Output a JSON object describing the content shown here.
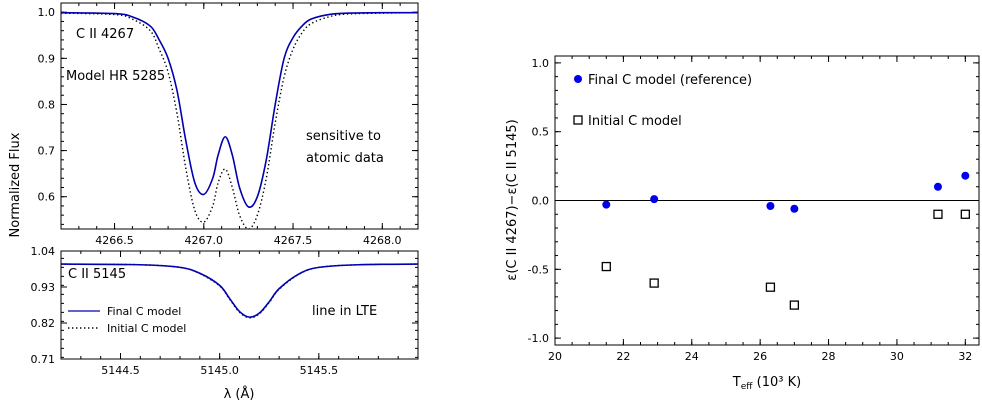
{
  "chart_data": [
    {
      "type": "line",
      "panel": "top-left",
      "ylabel": "Normalized Flux",
      "xlim": [
        4266.2,
        4268.2
      ],
      "ylim": [
        0.53,
        1.02
      ],
      "x_ticks": [
        "4266.5",
        "4267.0",
        "4267.5",
        "4268.0"
      ],
      "y_ticks": [
        "1.0",
        "0.9",
        "0.8",
        "0.7",
        "0.6"
      ],
      "annotations": [
        "C II 4267",
        "Model HR 5285",
        "sensitive to",
        "atomic data"
      ],
      "series": [
        {
          "name": "Final C model",
          "color": "#0000b0",
          "style": "solid",
          "x": [
            4266.2,
            4266.5,
            4266.6,
            4266.7,
            4266.75,
            4266.8,
            4266.85,
            4266.9,
            4266.95,
            4267.0,
            4267.05,
            4267.08,
            4267.12,
            4267.16,
            4267.2,
            4267.25,
            4267.3,
            4267.35,
            4267.4,
            4267.45,
            4267.5,
            4267.55,
            4267.6,
            4267.7,
            4267.8,
            4268.0,
            4268.2
          ],
          "y": [
            0.999,
            0.997,
            0.99,
            0.97,
            0.94,
            0.9,
            0.83,
            0.72,
            0.63,
            0.605,
            0.64,
            0.69,
            0.73,
            0.69,
            0.62,
            0.578,
            0.6,
            0.68,
            0.8,
            0.9,
            0.945,
            0.97,
            0.985,
            0.995,
            0.998,
            0.999,
            0.999
          ]
        },
        {
          "name": "Initial C model",
          "color": "#000000",
          "style": "dotted",
          "x": [
            4266.2,
            4266.5,
            4266.6,
            4266.7,
            4266.75,
            4266.8,
            4266.85,
            4266.9,
            4266.95,
            4267.0,
            4267.05,
            4267.08,
            4267.12,
            4267.16,
            4267.2,
            4267.25,
            4267.3,
            4267.35,
            4267.4,
            4267.45,
            4267.5,
            4267.55,
            4267.6,
            4267.7,
            4267.8,
            4268.0,
            4268.2
          ],
          "y": [
            0.998,
            0.995,
            0.985,
            0.96,
            0.92,
            0.87,
            0.78,
            0.66,
            0.57,
            0.545,
            0.58,
            0.63,
            0.66,
            0.62,
            0.56,
            0.53,
            0.56,
            0.64,
            0.76,
            0.86,
            0.92,
            0.955,
            0.975,
            0.99,
            0.996,
            0.998,
            0.999
          ]
        }
      ]
    },
    {
      "type": "line",
      "panel": "bottom-left",
      "xlabel": "λ (Å)",
      "xlim": [
        5144.2,
        5146.0
      ],
      "ylim": [
        0.71,
        1.04
      ],
      "x_ticks": [
        "5144.5",
        "5145.0",
        "5145.5"
      ],
      "y_ticks": [
        "1.04",
        "0.93",
        "0.82",
        "0.71"
      ],
      "annotations": [
        "C II 5145",
        "line in LTE"
      ],
      "legend": [
        "Final C model",
        "Initial C model"
      ],
      "series": [
        {
          "name": "Final C model",
          "color": "#0000b0",
          "style": "solid",
          "x": [
            5144.2,
            5144.6,
            5144.8,
            5144.9,
            5145.0,
            5145.05,
            5145.1,
            5145.15,
            5145.2,
            5145.25,
            5145.3,
            5145.4,
            5145.5,
            5145.7,
            5146.0
          ],
          "y": [
            1.0,
            0.998,
            0.99,
            0.972,
            0.935,
            0.895,
            0.855,
            0.838,
            0.85,
            0.885,
            0.925,
            0.97,
            0.99,
            0.998,
            1.0
          ]
        },
        {
          "name": "Initial C model",
          "color": "#000000",
          "style": "dotted",
          "x": [
            5144.2,
            5144.6,
            5144.8,
            5144.9,
            5145.0,
            5145.05,
            5145.1,
            5145.15,
            5145.2,
            5145.25,
            5145.3,
            5145.4,
            5145.5,
            5145.7,
            5146.0
          ],
          "y": [
            1.0,
            0.998,
            0.99,
            0.971,
            0.933,
            0.893,
            0.853,
            0.836,
            0.848,
            0.883,
            0.923,
            0.969,
            0.99,
            0.998,
            1.0
          ]
        }
      ]
    },
    {
      "type": "scatter",
      "panel": "right",
      "xlabel": "T",
      "xlabel_sub": "eff",
      "xlabel_rest": " (10³ K)",
      "ylabel": "ε(C II 4267)−ε(C II 5145)",
      "xlim": [
        20,
        32.4
      ],
      "ylim": [
        -1.05,
        1.05
      ],
      "x_ticks": [
        "20",
        "22",
        "24",
        "26",
        "28",
        "30",
        "32"
      ],
      "y_ticks": [
        "1.0",
        "0.5",
        "0.0",
        "-0.5",
        "-1.0"
      ],
      "legend_position": "top-left",
      "series": [
        {
          "name": "Final C model (reference)",
          "marker": "filled-circle",
          "color": "#0000ee",
          "x": [
            21.5,
            22.9,
            26.3,
            27.0,
            31.2,
            32.0
          ],
          "y": [
            -0.03,
            0.01,
            -0.04,
            -0.06,
            0.1,
            0.18
          ]
        },
        {
          "name": "Initial C model",
          "marker": "open-square",
          "color": "#000000",
          "x": [
            21.5,
            22.9,
            26.3,
            27.0,
            31.2,
            32.0
          ],
          "y": [
            -0.48,
            -0.6,
            -0.63,
            -0.76,
            -0.1,
            -0.1
          ]
        }
      ]
    }
  ]
}
